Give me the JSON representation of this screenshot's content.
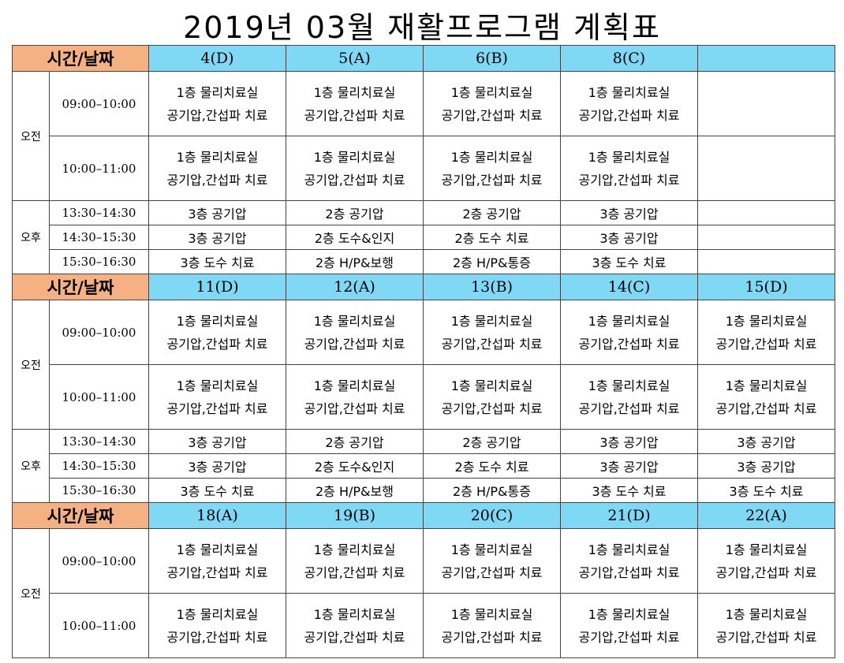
{
  "title": "2019년 03월 재활프로그램 계획표",
  "weeks": [
    {
      "header": "시간/날짜",
      "dates": [
        "4(D)",
        "5(A)",
        "6(B)",
        "8(C)"
      ],
      "am": {
        "label": "오전",
        "slots": [
          {
            "time": "09:00–10:00",
            "cells": [
              [
                "1층 물리치료실",
                "공기압,간섭파 치료"
              ],
              [
                "1층 물리치료실",
                "공기압,간섭파 치료"
              ],
              [
                "1층 물리치료실",
                "공기압,간섭파 치료"
              ],
              [
                "1층 물리치료실",
                "공기압,간섭파 치료"
              ]
            ]
          },
          {
            "time": "10:00–11:00",
            "cells": [
              [
                "1층 물리치료실",
                "공기압,간섭파 치료"
              ],
              [
                "1층 물리치료실",
                "공기압,간섭파 치료"
              ],
              [
                "1층 물리치료실",
                "공기압,간섭파 치료"
              ],
              [
                "1층 물리치료실",
                "공기압,간섭파 치료"
              ]
            ]
          }
        ]
      },
      "pm": {
        "label": "오후",
        "slots": [
          {
            "time": "13:30–14:30",
            "cells": [
              "3층 공기압",
              "2층 공기압",
              "2층 공기압",
              "3층 공기압"
            ]
          },
          {
            "time": "14:30–15:30",
            "cells": [
              "3층 공기압",
              "2층 도수&인지",
              "2층 도수 치료",
              "3층 공기압"
            ]
          },
          {
            "time": "15:30–16:30",
            "cells": [
              "3층 도수 치료",
              "2층 H/P&보행",
              "2층 H/P&통증",
              "3층 도수 치료"
            ]
          }
        ]
      }
    },
    {
      "header": "시간/날짜",
      "dates": [
        "11(D)",
        "12(A)",
        "13(B)",
        "14(C)",
        "15(D)"
      ],
      "am": {
        "label": "오전",
        "slots": [
          {
            "time": "09:00–10:00",
            "cells": [
              [
                "1층 물리치료실",
                "공기압,간섭파 치료"
              ],
              [
                "1층 물리치료실",
                "공기압,간섭파 치료"
              ],
              [
                "1층 물리치료실",
                "공기압,간섭파 치료"
              ],
              [
                "1층 물리치료실",
                "공기압,간섭파 치료"
              ],
              [
                "1층 물리치료실",
                "공기압,간섭파 치료"
              ]
            ]
          },
          {
            "time": "10:00–11:00",
            "cells": [
              [
                "1층 물리치료실",
                "공기압,간섭파 치료"
              ],
              [
                "1층 물리치료실",
                "공기압,간섭파 치료"
              ],
              [
                "1층 물리치료실",
                "공기압,간섭파 치료"
              ],
              [
                "1층 물리치료실",
                "공기압,간섭파 치료"
              ],
              [
                "1층 물리치료실",
                "공기압,간섭파 치료"
              ]
            ]
          }
        ]
      },
      "pm": {
        "label": "오후",
        "slots": [
          {
            "time": "13:30–14:30",
            "cells": [
              "3층 공기압",
              "2층 공기압",
              "2층 공기압",
              "3층 공기압",
              "3층 공기압"
            ]
          },
          {
            "time": "14:30–15:30",
            "cells": [
              "3층 공기압",
              "2층 도수&인지",
              "2층 도수 치료",
              "3층 공기압",
              "3층 공기압"
            ]
          },
          {
            "time": "15:30–16:30",
            "cells": [
              "3층 도수 치료",
              "2층 H/P&보행",
              "2층 H/P&통증",
              "3층 도수 치료",
              "3층 도수 치료"
            ]
          }
        ]
      }
    },
    {
      "header": "시간/날짜",
      "dates": [
        "18(A)",
        "19(B)",
        "20(C)",
        "21(D)",
        "22(A)"
      ],
      "am": {
        "label": "오전",
        "slots": [
          {
            "time": "09:00–10:00",
            "cells": [
              [
                "1층 물리치료실",
                "공기압,간섭파 치료"
              ],
              [
                "1층 물리치료실",
                "공기압,간섭파 치료"
              ],
              [
                "1층 물리치료실",
                "공기압,간섭파 치료"
              ],
              [
                "1층 물리치료실",
                "공기압,간섭파 치료"
              ],
              [
                "1층 물리치료실",
                "공기압,간섭파 치료"
              ]
            ]
          },
          {
            "time": "10:00–11:00",
            "cells": [
              [
                "1층 물리치료실",
                "공기압,간섭파 치료"
              ],
              [
                "1층 물리치료실",
                "공기압,간섭파 치료"
              ],
              [
                "1층 물리치료실",
                "공기압,간섭파 치료"
              ],
              [
                "1층 물리치료실",
                "공기압,간섭파 치료"
              ],
              [
                "1층 물리치료실",
                "공기압,간섭파 치료"
              ]
            ]
          }
        ]
      }
    }
  ]
}
